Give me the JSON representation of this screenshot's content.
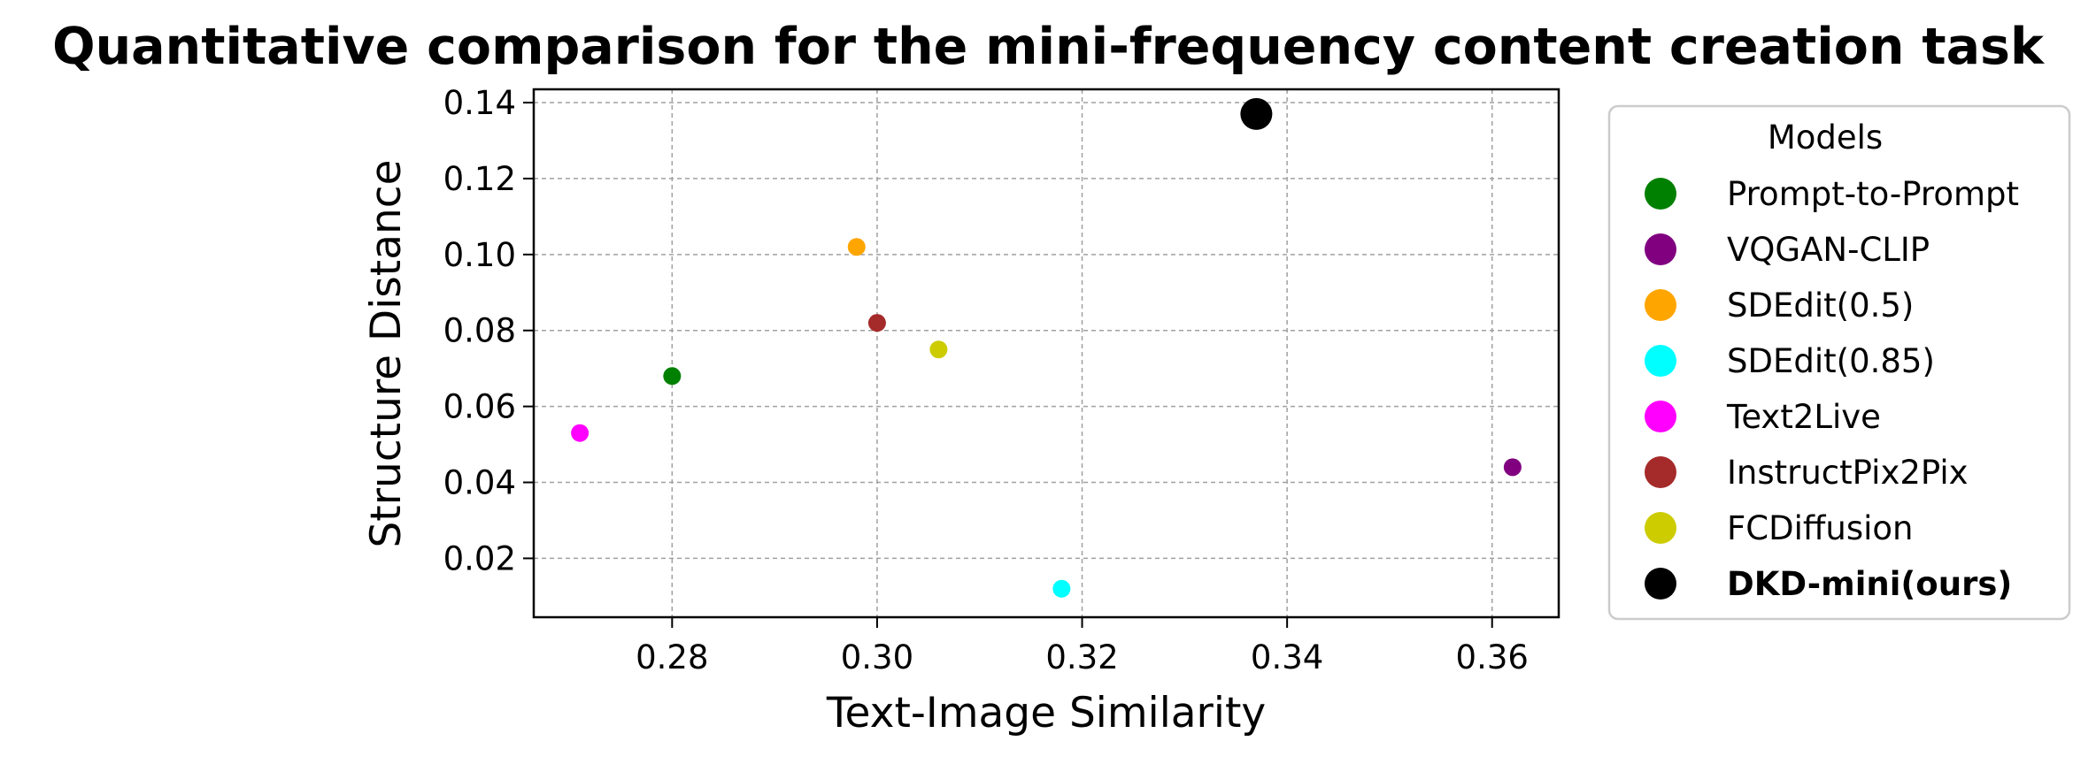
{
  "chart_data": {
    "type": "scatter",
    "title": "Quantitative comparison for the mini-frequency content creation task",
    "xlabel": "Text-Image Similarity",
    "ylabel": "Structure Distance",
    "xlim": [
      0.2665,
      0.3665
    ],
    "ylim": [
      0.0045,
      0.1435
    ],
    "xticks": [
      0.28,
      0.3,
      0.32,
      0.34,
      0.36
    ],
    "xtick_labels": [
      "0.28",
      "0.30",
      "0.32",
      "0.34",
      "0.36"
    ],
    "yticks": [
      0.02,
      0.04,
      0.06,
      0.08,
      0.1,
      0.12,
      0.14
    ],
    "ytick_labels": [
      "0.02",
      "0.04",
      "0.06",
      "0.08",
      "0.10",
      "0.12",
      "0.14"
    ],
    "grid": true,
    "legend": {
      "title": "Models",
      "placement": "outside-right"
    },
    "series": [
      {
        "name": "Prompt-to-Prompt",
        "color": "#008000",
        "x": 0.28,
        "y": 0.068,
        "highlight": false
      },
      {
        "name": "VQGAN-CLIP",
        "color": "#800080",
        "x": 0.362,
        "y": 0.044,
        "highlight": false
      },
      {
        "name": "SDEdit(0.5)",
        "color": "#FFA500",
        "x": 0.298,
        "y": 0.102,
        "highlight": false
      },
      {
        "name": "SDEdit(0.85)",
        "color": "#00FFFF",
        "x": 0.318,
        "y": 0.012,
        "highlight": false
      },
      {
        "name": "Text2Live",
        "color": "#FF00FF",
        "x": 0.271,
        "y": 0.053,
        "highlight": false
      },
      {
        "name": "InstructPix2Pix",
        "color": "#A52A2A",
        "x": 0.3,
        "y": 0.082,
        "highlight": false
      },
      {
        "name": "FCDiffusion",
        "color": "#CCCC00",
        "x": 0.306,
        "y": 0.075,
        "highlight": false
      },
      {
        "name": "DKD-mini(ours)",
        "color": "#000000",
        "x": 0.337,
        "y": 0.137,
        "highlight": true
      }
    ]
  }
}
